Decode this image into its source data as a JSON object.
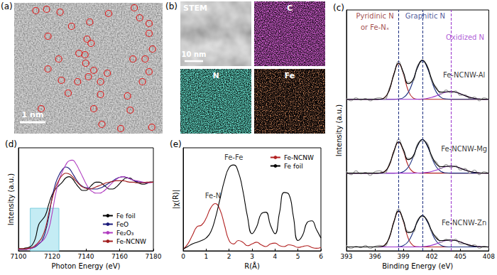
{
  "panels": [
    {
      "label": "(a)",
      "type": "image",
      "scale_bar": "1 nm"
    },
    {
      "label": "(b)",
      "type": "image_grid",
      "tiles": [
        "STEM",
        "C",
        "N",
        "Fe"
      ],
      "scale_bar": "10 nm"
    }
  ],
  "chart_data": [
    {
      "label": "(c)",
      "type": "line",
      "x_label": "Binding Energy (eV)",
      "y_label": "Intensity (a.u.)",
      "xlim": [
        393,
        408
      ],
      "xticks": [
        393,
        396,
        399,
        402,
        405,
        408
      ],
      "ylim": [
        0,
        31
      ],
      "yticks": [],
      "tick_labels": "x",
      "grid": false,
      "x": [
        393,
        393.5,
        394,
        394.5,
        395,
        395.5,
        396,
        396.5,
        397,
        397.5,
        398,
        398.5,
        399,
        399.5,
        400,
        400.5,
        401,
        401.5,
        402,
        402.5,
        403,
        403.5,
        404,
        404.5,
        405,
        405.5,
        406,
        406.5,
        407,
        407.5,
        408
      ],
      "series": [
        {
          "color": "#b22222",
          "line_style": "solid",
          "values": [
            19.5,
            19.5,
            19.5,
            19.5,
            19.5,
            19.5,
            19.5,
            19.52,
            19.7,
            20.65,
            22.75,
            24.1,
            22.75,
            20.65,
            19.7,
            19.52,
            19.5,
            19.5,
            19.5,
            19.5,
            19.5,
            19.5,
            19.5,
            19.5,
            19.5,
            19.5,
            19.5,
            19.5,
            19.5,
            19.5,
            19.5
          ]
        },
        {
          "color": "#1c2f80",
          "line_style": "solid",
          "values": [
            19.5,
            19.5,
            19.5,
            19.5,
            19.5,
            19.5,
            19.5,
            19.5,
            19.5,
            19.5,
            19.5,
            19.54,
            19.72,
            20.36,
            21.79,
            23.62,
            24.5,
            23.62,
            21.79,
            20.36,
            19.72,
            19.54,
            19.5,
            19.5,
            19.5,
            19.5,
            19.5,
            19.5,
            19.5,
            19.5,
            19.5
          ]
        },
        {
          "color": "#9932cc",
          "line_style": "solid",
          "values": [
            19.5,
            19.5,
            19.5,
            19.5,
            19.5,
            19.5,
            19.5,
            19.5,
            19.5,
            19.5,
            19.5,
            19.5,
            19.5,
            19.5,
            19.5,
            19.51,
            19.54,
            19.61,
            19.75,
            19.96,
            20.21,
            20.42,
            20.5,
            20.42,
            20.21,
            19.96,
            19.75,
            19.61,
            19.54,
            19.51,
            19.5
          ]
        },
        {
          "color": "#9a9a9a",
          "line_style": "solid",
          "values": [
            19.6,
            19.3,
            19.7,
            19.4,
            19.6,
            19.3,
            19.6,
            19.7,
            19.5,
            20.9,
            22.6,
            24.4,
            22.8,
            21.7,
            21.8,
            23.9,
            24.3,
            23.9,
            21.8,
            21.0,
            20.2,
            20.7,
            20.3,
            20.6,
            20.0,
            20.1,
            19.6,
            19.8,
            19.3,
            19.7,
            19.4
          ]
        },
        {
          "color": "#000000",
          "line_style": "solid",
          "values": [
            19.5,
            19.5,
            19.5,
            19.5,
            19.5,
            19.5,
            19.5,
            19.52,
            19.7,
            20.65,
            22.75,
            24.14,
            22.97,
            21.51,
            21.99,
            23.65,
            24.54,
            23.73,
            22.04,
            20.82,
            20.43,
            20.46,
            20.5,
            20.42,
            20.21,
            19.96,
            19.75,
            19.61,
            19.54,
            19.51,
            19.5
          ]
        },
        {
          "color": "#b22222",
          "line_style": "solid",
          "values": [
            10,
            10,
            10,
            10,
            10,
            10,
            10,
            10.02,
            10.18,
            11.0,
            12.83,
            14.0,
            12.83,
            11.0,
            10.18,
            10.02,
            10,
            10,
            10,
            10,
            10,
            10,
            10,
            10,
            10,
            10,
            10,
            10,
            10,
            10,
            10
          ]
        },
        {
          "color": "#1c2f80",
          "line_style": "solid",
          "values": [
            10,
            10,
            10,
            10,
            10,
            10,
            10,
            10,
            10,
            10,
            10,
            10.03,
            10.19,
            10.74,
            11.97,
            13.54,
            14.3,
            13.54,
            11.97,
            10.74,
            10.19,
            10.03,
            10,
            10,
            10,
            10,
            10,
            10,
            10,
            10,
            10
          ]
        },
        {
          "color": "#9932cc",
          "line_style": "solid",
          "values": [
            10,
            10,
            10,
            10,
            10,
            10,
            10,
            10,
            10,
            10,
            10,
            10,
            10,
            10,
            10,
            10.01,
            10.04,
            10.1,
            10.22,
            10.41,
            10.64,
            10.83,
            10.9,
            10.83,
            10.64,
            10.41,
            10.22,
            10.1,
            10.04,
            10.01,
            10
          ]
        },
        {
          "color": "#9a9a9a",
          "line_style": "solid",
          "values": [
            10.2,
            9.8,
            10.3,
            9.9,
            10.1,
            9.7,
            10.2,
            10.3,
            10.0,
            11.2,
            12.6,
            14.4,
            12.9,
            11.9,
            12.0,
            13.8,
            14.1,
            13.9,
            11.9,
            11.4,
            10.6,
            11.1,
            10.7,
            11.0,
            10.4,
            10.6,
            10.0,
            10.4,
            9.8,
            10.2,
            9.9
          ]
        },
        {
          "color": "#000000",
          "line_style": "solid",
          "values": [
            10,
            10,
            10,
            10,
            10,
            10,
            10,
            10.02,
            10.18,
            11.0,
            12.83,
            14.03,
            13.02,
            11.74,
            12.15,
            13.57,
            14.34,
            13.64,
            12.19,
            11.15,
            10.83,
            10.86,
            10.9,
            10.83,
            10.64,
            10.41,
            10.22,
            10.1,
            10.04,
            10.01,
            10
          ]
        },
        {
          "color": "#b22222",
          "line_style": "solid",
          "values": [
            0.5,
            0.5,
            0.5,
            0.5,
            0.5,
            0.5,
            0.5,
            0.52,
            0.7,
            1.65,
            3.75,
            5.1,
            3.75,
            1.65,
            0.7,
            0.52,
            0.5,
            0.5,
            0.5,
            0.5,
            0.5,
            0.5,
            0.5,
            0.5,
            0.5,
            0.5,
            0.5,
            0.5,
            0.5,
            0.5,
            0.5
          ]
        },
        {
          "color": "#1c2f80",
          "line_style": "solid",
          "values": [
            0.5,
            0.5,
            0.5,
            0.5,
            0.5,
            0.5,
            0.5,
            0.5,
            0.5,
            0.5,
            0.5,
            0.53,
            0.68,
            1.19,
            2.33,
            3.79,
            4.5,
            3.79,
            2.33,
            1.19,
            0.68,
            0.53,
            0.5,
            0.5,
            0.5,
            0.5,
            0.5,
            0.5,
            0.5,
            0.5,
            0.5
          ]
        },
        {
          "color": "#9932cc",
          "line_style": "solid",
          "values": [
            0.5,
            0.5,
            0.5,
            0.5,
            0.5,
            0.5,
            0.5,
            0.5,
            0.5,
            0.5,
            0.5,
            0.5,
            0.5,
            0.5,
            0.5,
            0.51,
            0.54,
            0.6,
            0.72,
            0.91,
            1.14,
            1.33,
            1.4,
            1.33,
            1.14,
            0.91,
            0.72,
            0.6,
            0.54,
            0.51,
            0.5
          ]
        },
        {
          "color": "#9a9a9a",
          "line_style": "solid",
          "values": [
            0.7,
            0.3,
            0.6,
            0.4,
            0.7,
            0.3,
            0.6,
            0.7,
            0.6,
            1.8,
            3.6,
            5.4,
            3.8,
            2.5,
            2.4,
            4.0,
            4.4,
            4.0,
            2.4,
            1.8,
            1.1,
            1.5,
            1.2,
            1.5,
            0.9,
            0.9,
            0.6,
            0.8,
            0.3,
            0.6,
            0.4
          ]
        },
        {
          "color": "#000000",
          "line_style": "solid",
          "values": [
            0.5,
            0.5,
            0.5,
            0.5,
            0.5,
            0.5,
            0.5,
            0.52,
            0.7,
            1.65,
            3.75,
            5.13,
            3.93,
            2.34,
            2.53,
            3.82,
            4.54,
            3.89,
            2.55,
            1.6,
            1.32,
            1.36,
            1.4,
            1.33,
            1.14,
            0.91,
            0.72,
            0.6,
            0.54,
            0.51,
            0.5
          ]
        }
      ],
      "reference_lines": [
        {
          "x": 398.5,
          "color": "#1c2f80",
          "line_style": "dashed"
        },
        {
          "x": 401,
          "color": "#1c2f80",
          "line_style": "dashed"
        },
        {
          "x": 404,
          "color": "#9932cc",
          "line_style": "dashed"
        }
      ],
      "annotations": [
        {
          "text": "Pyridinic N",
          "x": 396.0,
          "y": 30.2,
          "color": "#8b1a1a"
        },
        {
          "text": "or Fe-Nₓ",
          "x": 396.0,
          "y": 28.8,
          "color": "#8b1a1a"
        },
        {
          "text": "Graphitic N",
          "x": 401.3,
          "y": 30.2,
          "color": "#1c2f80"
        },
        {
          "text": "Oxidized N",
          "x": 405.5,
          "y": 27.5,
          "color": "#9932cc"
        },
        {
          "text": "Fe-NCNW-Al",
          "x": 405.4,
          "y": 22.6,
          "color": "#000000"
        },
        {
          "text": "Fe-NCNW-Mg",
          "x": 405.4,
          "y": 13.1,
          "color": "#000000"
        },
        {
          "text": "Fe-NCNW-Zn",
          "x": 405.4,
          "y": 3.6,
          "color": "#000000"
        }
      ]
    },
    {
      "label": "(d)",
      "type": "line",
      "x_label": "Photon Energy (eV)",
      "y_label": "Intensity (a.u.)",
      "xlim": [
        7100,
        7180
      ],
      "xticks": [
        7100,
        7120,
        7140,
        7160,
        7180
      ],
      "ylim": [
        0,
        1.5
      ],
      "yticks": [],
      "tick_labels": "x",
      "grid": false,
      "legend": "lower right",
      "x": [
        7100,
        7102,
        7104,
        7106,
        7108,
        7110,
        7112,
        7114,
        7116,
        7118,
        7120,
        7122,
        7124,
        7126,
        7128,
        7130,
        7132,
        7134,
        7136,
        7138,
        7140,
        7142,
        7144,
        7146,
        7148,
        7150,
        7152,
        7154,
        7156,
        7158,
        7160,
        7162,
        7164,
        7166,
        7168,
        7170,
        7172,
        7174,
        7176,
        7178,
        7180
      ],
      "series": [
        {
          "name": "Fe foil",
          "color": "#000000",
          "line_style": "solid",
          "values": [
            0.03,
            0.03,
            0.04,
            0.05,
            0.08,
            0.18,
            0.38,
            0.45,
            0.52,
            0.68,
            0.82,
            0.9,
            0.95,
            1.0,
            1.06,
            1.08,
            1.05,
            0.98,
            0.92,
            0.88,
            0.88,
            0.92,
            0.97,
            1.0,
            1.0,
            0.97,
            0.93,
            0.9,
            0.9,
            0.93,
            0.98,
            1.03,
            1.06,
            1.06,
            1.03,
            1.0,
            0.98,
            0.97,
            0.98,
            1.0,
            1.0
          ]
        },
        {
          "name": "FeO",
          "color": "#1a1a7a",
          "line_style": "solid",
          "values": [
            0.02,
            0.02,
            0.02,
            0.03,
            0.04,
            0.06,
            0.1,
            0.15,
            0.28,
            0.5,
            0.78,
            0.98,
            1.1,
            1.18,
            1.22,
            1.2,
            1.13,
            1.05,
            0.98,
            0.94,
            0.92,
            0.91,
            0.9,
            0.9,
            0.91,
            0.93,
            0.96,
            0.99,
            1.02,
            1.05,
            1.07,
            1.08,
            1.07,
            1.05,
            1.03,
            1.01,
            1.0,
            0.99,
            0.99,
            1.0,
            1.0
          ]
        },
        {
          "name": "Fe₂O₃",
          "color": "#b03cc0",
          "line_style": "solid",
          "values": [
            0.02,
            0.02,
            0.02,
            0.03,
            0.04,
            0.07,
            0.11,
            0.14,
            0.2,
            0.32,
            0.55,
            0.82,
            1.02,
            1.15,
            1.25,
            1.31,
            1.32,
            1.27,
            1.18,
            1.08,
            0.98,
            0.9,
            0.86,
            0.84,
            0.84,
            0.86,
            0.9,
            0.95,
            1.0,
            1.04,
            1.07,
            1.08,
            1.07,
            1.05,
            1.03,
            1.02,
            1.01,
            1.0,
            0.99,
            0.99,
            1.0
          ]
        },
        {
          "name": "Fe-NCNW",
          "color": "#a01c1c",
          "line_style": "solid",
          "values": [
            0.03,
            0.03,
            0.03,
            0.04,
            0.05,
            0.08,
            0.13,
            0.2,
            0.33,
            0.55,
            0.76,
            0.92,
            1.03,
            1.1,
            1.13,
            1.12,
            1.08,
            1.02,
            0.97,
            0.93,
            0.91,
            0.9,
            0.91,
            0.93,
            0.95,
            0.97,
            0.99,
            1.0,
            1.01,
            1.02,
            1.02,
            1.02,
            1.01,
            1.0,
            1.0,
            0.99,
            0.99,
            0.99,
            1.0,
            1.0,
            1.0
          ]
        }
      ],
      "highlight": {
        "x": [
          7107,
          7124
        ],
        "y": [
          0,
          0.62
        ],
        "color": "#c4ecf4"
      }
    },
    {
      "label": "(e)",
      "type": "line",
      "x_label": "R(Å)",
      "y_label": "|χ(R)|",
      "xlim": [
        0,
        6
      ],
      "xticks": [
        0,
        1,
        2,
        3,
        4,
        5,
        6
      ],
      "ylim": [
        0,
        1.2
      ],
      "yticks": [],
      "tick_labels": "x",
      "grid": false,
      "legend": "upper right",
      "x": [
        0,
        0.2,
        0.4,
        0.6,
        0.8,
        1,
        1.2,
        1.4,
        1.6,
        1.8,
        2,
        2.2,
        2.4,
        2.6,
        2.8,
        3,
        3.2,
        3.4,
        3.6,
        3.8,
        4,
        4.2,
        4.4,
        4.6,
        4.8,
        5,
        5.2,
        5.4,
        5.6,
        5.8,
        6
      ],
      "series": [
        {
          "name": "Fe-NCNW",
          "color": "#b22222",
          "line_style": "solid",
          "values": [
            0.02,
            0.08,
            0.18,
            0.28,
            0.3,
            0.38,
            0.5,
            0.55,
            0.48,
            0.3,
            0.12,
            0.08,
            0.12,
            0.1,
            0.06,
            0.08,
            0.1,
            0.07,
            0.05,
            0.08,
            0.09,
            0.06,
            0.05,
            0.07,
            0.06,
            0.04,
            0.05,
            0.06,
            0.04,
            0.03,
            0.04
          ]
        },
        {
          "name": "Fe foil",
          "color": "#000000",
          "line_style": "solid",
          "values": [
            0.02,
            0.05,
            0.08,
            0.1,
            0.12,
            0.15,
            0.22,
            0.38,
            0.6,
            0.82,
            0.97,
            1.0,
            0.92,
            0.7,
            0.4,
            0.2,
            0.28,
            0.43,
            0.45,
            0.3,
            0.2,
            0.45,
            0.68,
            0.66,
            0.4,
            0.12,
            0.18,
            0.33,
            0.35,
            0.25,
            0.15
          ]
        }
      ],
      "annotations": [
        {
          "text": "Fe-N",
          "x": 1.3,
          "y": 0.64,
          "color": "#000000"
        },
        {
          "text": "Fe-Fe",
          "x": 2.2,
          "y": 1.09,
          "color": "#000000"
        }
      ]
    }
  ]
}
